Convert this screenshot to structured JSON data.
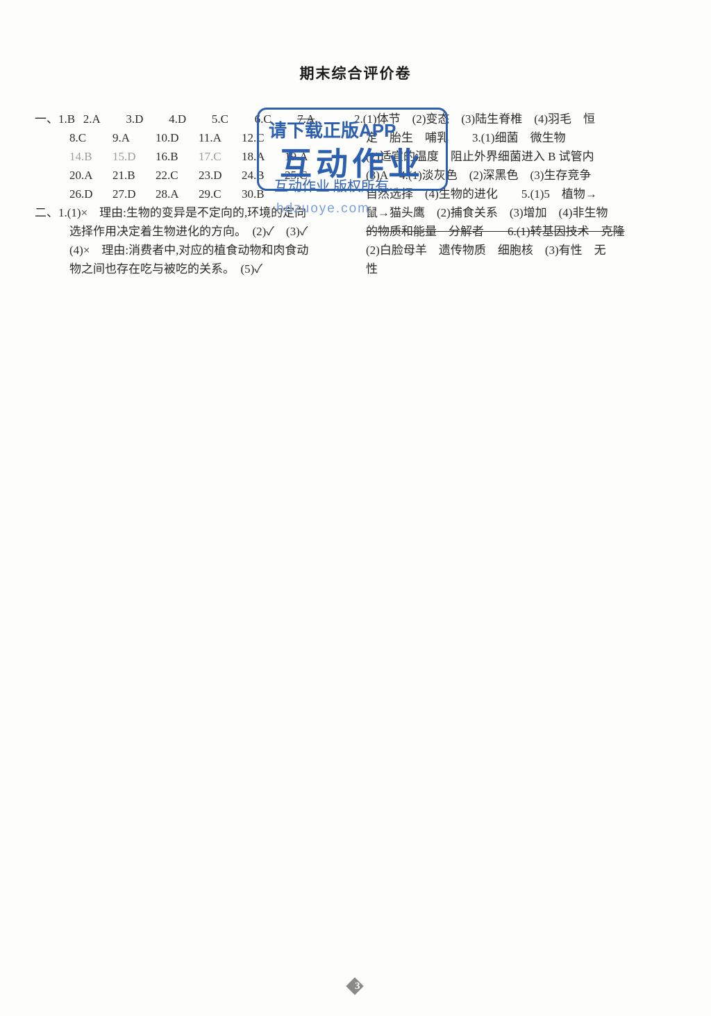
{
  "title": "期末综合评价卷",
  "pageNumber": "3",
  "watermark": {
    "line1": "请下载正版APP",
    "line2": "互动作业",
    "line3": "互动作业 版权所有",
    "url": "hdzuoye.com"
  },
  "section1": {
    "label": "一、",
    "rows": [
      [
        "1.B",
        "2.A",
        "3.D",
        "4.D",
        "5.C",
        "6.C",
        "7.A"
      ],
      [
        "8.C",
        "9.A",
        "10.D",
        "11.A",
        "12.C",
        "",
        ""
      ],
      [
        "14.B",
        "15.D",
        "16.B",
        "17.C",
        "18.A",
        "19.A",
        ""
      ],
      [
        "20.A",
        "21.B",
        "22.C",
        "23.D",
        "24.B",
        "25.C",
        ""
      ],
      [
        "26.D",
        "27.D",
        "28.A",
        "29.C",
        "30.B",
        "",
        ""
      ]
    ]
  },
  "section2": {
    "label": "二、1.(1)×",
    "l1": "理由:生物的变异是不定向的,环境的定向",
    "l2": "选择作用决定着生物进化的方向。　(2)✓　(3)✓",
    "l3": "(4)×　理由:消费者中,对应的植食动物和肉食动",
    "l4": "物之间也存在吃与被吃的关系。　(5)✓"
  },
  "right": {
    "r1": "2.(1)体节　(2)变态　(3)陆生脊椎　(4)羽毛　恒",
    "r2": "定　胎生　哺乳　　3.(1)细菌　微生物",
    "r3": "(2)适宜的温度　阻止外界细菌进入 B 试管内",
    "r4a": "(3)A　4.(1)淡灰色　(2)深黑色　(3)生存竞争",
    "r5": "自然选择　(4)生物的进化　　5.(1)5　植物→",
    "r6": "鼠→猫头鹰　(2)捕食关系　(3)增加　(4)非生物",
    "r7": "的物质和能量　分解者　　6.(1)转基因技术　克隆",
    "r8": "(2)白脸母羊　遗传物质　细胞核　(3)有性　无",
    "r9": "性"
  }
}
